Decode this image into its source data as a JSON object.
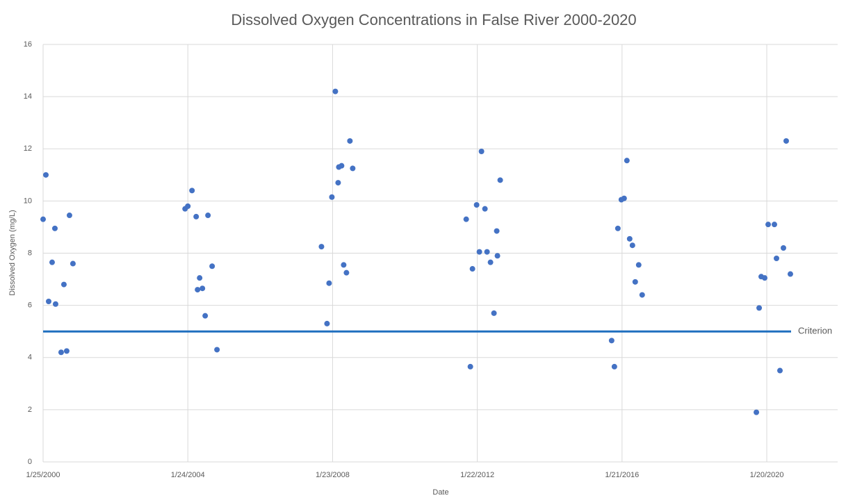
{
  "chart_data": {
    "type": "scatter",
    "title": "Dissolved Oxygen Concentrations in False River 2000-2020",
    "xlabel": "Date",
    "ylabel": "Dissolved Oxygen (mg/L)",
    "series": [
      {
        "name": "Dissolved Oxygen",
        "color": "#4472c4",
        "x": [
          "2000-01-25",
          "2000-02-22",
          "2000-03-21",
          "2000-04-25",
          "2000-05-23",
          "2000-05-30",
          "2000-07-25",
          "2000-08-22",
          "2000-09-19",
          "2000-10-17",
          "2000-11-21",
          "2003-12-27",
          "2004-01-24",
          "2004-03-06",
          "2004-04-17",
          "2004-05-01",
          "2004-05-22",
          "2004-06-19",
          "2004-07-17",
          "2004-08-14",
          "2004-09-25",
          "2004-11-13",
          "2007-10-03",
          "2007-11-28",
          "2007-12-19",
          "2008-01-16",
          "2008-02-20",
          "2008-03-19",
          "2008-03-26",
          "2008-04-23",
          "2008-05-14",
          "2008-06-11",
          "2008-07-16",
          "2008-08-13",
          "2011-10-02",
          "2011-11-13",
          "2011-12-04",
          "2012-01-15",
          "2012-02-12",
          "2012-03-04",
          "2012-04-08",
          "2012-04-29",
          "2012-06-03",
          "2012-07-08",
          "2012-08-05",
          "2012-08-12",
          "2012-09-09",
          "2015-10-08",
          "2015-11-05",
          "2015-12-10",
          "2016-01-14",
          "2016-02-11",
          "2016-03-10",
          "2016-04-07",
          "2016-05-05",
          "2016-06-02",
          "2016-07-07",
          "2016-08-11",
          "2019-10-07",
          "2019-11-04",
          "2019-11-25",
          "2019-12-30",
          "2020-02-03",
          "2020-04-06",
          "2020-04-27",
          "2020-06-01",
          "2020-07-06",
          "2020-08-03",
          "2020-09-14"
        ],
        "values": [
          9.3,
          11.0,
          6.15,
          7.65,
          8.95,
          6.05,
          4.2,
          6.8,
          4.25,
          9.45,
          7.6,
          9.7,
          9.8,
          10.4,
          9.4,
          6.6,
          7.05,
          6.65,
          5.6,
          9.45,
          7.5,
          4.3,
          8.25,
          5.3,
          6.85,
          10.15,
          14.2,
          10.7,
          11.3,
          11.35,
          7.55,
          7.25,
          12.3,
          11.25,
          9.3,
          3.65,
          7.4,
          9.85,
          8.05,
          11.9,
          9.7,
          8.05,
          7.65,
          5.7,
          8.85,
          7.9,
          10.8,
          4.65,
          3.65,
          8.95,
          10.05,
          10.1,
          11.55,
          8.55,
          8.3,
          6.9,
          7.55,
          6.4,
          1.9,
          5.9,
          7.1,
          7.05,
          9.1,
          9.1,
          7.8,
          3.5,
          8.2,
          12.3,
          7.2
        ]
      }
    ],
    "reference_lines": [
      {
        "label": "Criterion",
        "value": 5,
        "color": "#1f6fbf"
      }
    ],
    "xlim": [
      "2000-01-25",
      "2022-01-04"
    ],
    "xticks": [
      {
        "value": "2000-01-25",
        "label": "1/25/2000"
      },
      {
        "value": "2004-01-24",
        "label": "1/24/2004"
      },
      {
        "value": "2008-01-23",
        "label": "1/23/2008"
      },
      {
        "value": "2012-01-22",
        "label": "1/22/2012"
      },
      {
        "value": "2016-01-21",
        "label": "1/21/2016"
      },
      {
        "value": "2020-01-20",
        "label": "1/20/2020"
      }
    ],
    "ylim": [
      0,
      16
    ],
    "yticks": [
      0,
      2,
      4,
      6,
      8,
      10,
      12,
      14,
      16
    ],
    "grid": true
  }
}
